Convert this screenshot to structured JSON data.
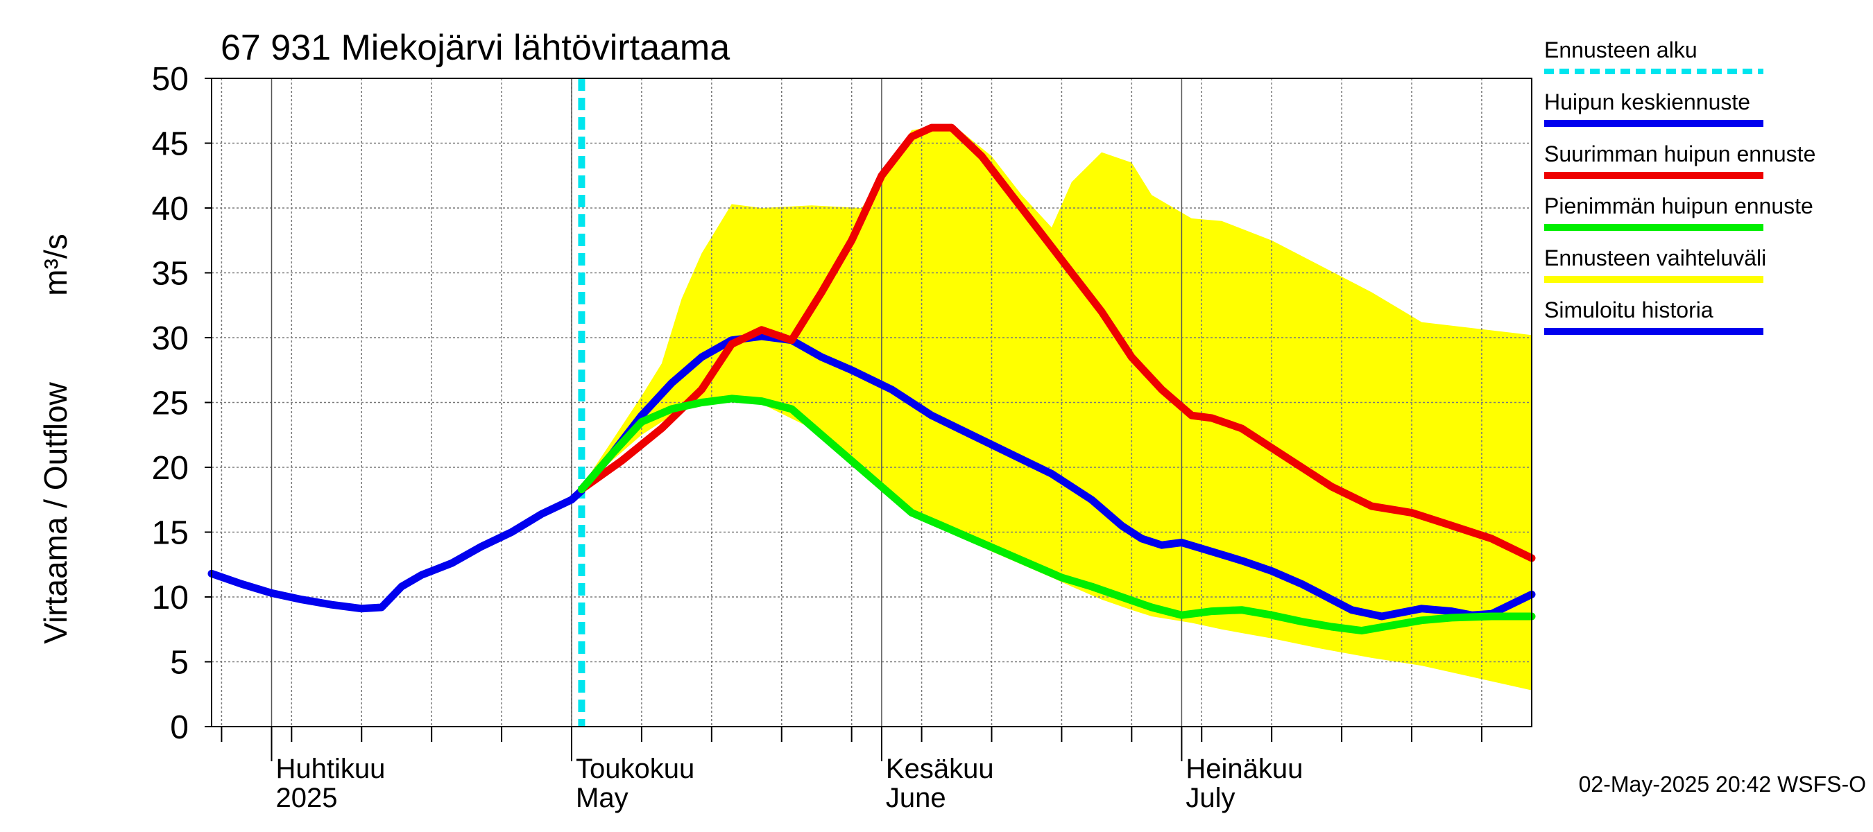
{
  "chart_data": {
    "type": "line",
    "title": "67 931 Miekojärvi lähtövirtaama",
    "ylabel_left": "Virtaama / Outflow",
    "ylabel_right": "m³/s",
    "ylim": [
      0,
      50
    ],
    "yticks": [
      "0",
      "5",
      "10",
      "15",
      "20",
      "25",
      "30",
      "35",
      "40",
      "45",
      "50"
    ],
    "xlim": [
      "2025-03-26",
      "2025-08-05"
    ],
    "grid": true,
    "month_labels": [
      {
        "date": "2025-04-01",
        "fi": "Huhtikuu",
        "en": "2025"
      },
      {
        "date": "2025-05-01",
        "fi": "Toukokuu",
        "en": "May"
      },
      {
        "date": "2025-06-01",
        "fi": "Kesäkuu",
        "en": "June"
      },
      {
        "date": "2025-07-01",
        "fi": "Heinäkuu",
        "en": "July"
      }
    ],
    "forecast_start": "2025-05-02",
    "legend": [
      {
        "label": "Ennusteen alku",
        "color": "#00e5ee",
        "style": "dashed"
      },
      {
        "label": "Huipun keskiennuste",
        "color": "#0000ee",
        "style": "solid"
      },
      {
        "label": "Suurimman huipun ennuste",
        "color": "#ee0000",
        "style": "solid"
      },
      {
        "label": "Pienimmän huipun ennuste",
        "color": "#00ee00",
        "style": "solid"
      },
      {
        "label": "Ennusteen vaihteluväli",
        "color": "#ffff00",
        "style": "solid"
      },
      {
        "label": "Simuloitu historia",
        "color": "#0000ee",
        "style": "solid"
      }
    ],
    "legend_position": "right",
    "footer": "02-May-2025 20:42 WSFS-O",
    "band": {
      "name": "Ennusteen vaihteluväli",
      "x": [
        "2025-05-02",
        "2025-05-05",
        "2025-05-08",
        "2025-05-10",
        "2025-05-12",
        "2025-05-14",
        "2025-05-17",
        "2025-05-20",
        "2025-05-25",
        "2025-05-30",
        "2025-06-04",
        "2025-06-08",
        "2025-06-12",
        "2025-06-15",
        "2025-06-18",
        "2025-06-20",
        "2025-06-23",
        "2025-06-26",
        "2025-06-28",
        "2025-07-02",
        "2025-07-05",
        "2025-07-10",
        "2025-07-15",
        "2025-07-20",
        "2025-07-25",
        "2025-08-05"
      ],
      "upper": [
        18.5,
        22,
        25.5,
        28,
        33,
        36.5,
        40.3,
        40,
        40.2,
        40,
        46,
        46.5,
        44,
        41,
        38.5,
        42,
        44.3,
        43.5,
        41,
        39.2,
        39,
        37.5,
        35.5,
        33.5,
        31.2,
        30.2
      ],
      "lower": [
        18.5,
        20.5,
        22.5,
        23.5,
        24.3,
        25.2,
        25.4,
        24.9,
        23,
        19.5,
        16.5,
        15,
        13.5,
        12.5,
        11.5,
        10.8,
        9.8,
        9,
        8.5,
        8,
        7.5,
        6.8,
        6,
        5.3,
        4.7,
        2.8
      ]
    },
    "series": [
      {
        "name": "Simuloitu historia",
        "color": "#0000ee",
        "x": [
          "2025-03-26",
          "2025-03-29",
          "2025-04-01",
          "2025-04-04",
          "2025-04-07",
          "2025-04-10",
          "2025-04-12",
          "2025-04-14",
          "2025-04-16",
          "2025-04-19",
          "2025-04-22",
          "2025-04-25",
          "2025-04-28",
          "2025-05-01",
          "2025-05-02"
        ],
        "y": [
          11.8,
          11,
          10.3,
          9.8,
          9.4,
          9.1,
          9.2,
          10.8,
          11.7,
          12.6,
          13.9,
          15,
          16.4,
          17.5,
          18.2
        ]
      },
      {
        "name": "Huipun keskiennuste",
        "color": "#0000ee",
        "x": [
          "2025-05-02",
          "2025-05-05",
          "2025-05-08",
          "2025-05-11",
          "2025-05-14",
          "2025-05-17",
          "2025-05-20",
          "2025-05-23",
          "2025-05-26",
          "2025-05-29",
          "2025-06-02",
          "2025-06-06",
          "2025-06-10",
          "2025-06-14",
          "2025-06-18",
          "2025-06-22",
          "2025-06-25",
          "2025-06-27",
          "2025-06-29",
          "2025-07-01",
          "2025-07-04",
          "2025-07-07",
          "2025-07-10",
          "2025-07-13",
          "2025-07-16",
          "2025-07-18",
          "2025-07-21",
          "2025-07-25",
          "2025-07-28",
          "2025-07-30",
          "2025-08-01",
          "2025-08-05"
        ],
        "y": [
          18.3,
          21,
          24,
          26.5,
          28.5,
          29.8,
          30.1,
          29.8,
          28.5,
          27.5,
          26,
          24,
          22.5,
          21,
          19.5,
          17.5,
          15.5,
          14.5,
          14,
          14.2,
          13.5,
          12.8,
          12,
          11,
          9.8,
          9,
          8.5,
          9.1,
          8.9,
          8.6,
          8.7,
          10.2
        ]
      },
      {
        "name": "Suurimman huipun ennuste",
        "color": "#ee0000",
        "x": [
          "2025-05-02",
          "2025-05-06",
          "2025-05-10",
          "2025-05-14",
          "2025-05-17",
          "2025-05-20",
          "2025-05-23",
          "2025-05-26",
          "2025-05-29",
          "2025-06-01",
          "2025-06-04",
          "2025-06-06",
          "2025-06-08",
          "2025-06-11",
          "2025-06-14",
          "2025-06-17",
          "2025-06-20",
          "2025-06-23",
          "2025-06-26",
          "2025-06-29",
          "2025-07-02",
          "2025-07-04",
          "2025-07-07",
          "2025-07-10",
          "2025-07-13",
          "2025-07-16",
          "2025-07-20",
          "2025-07-24",
          "2025-07-28",
          "2025-08-01",
          "2025-08-05"
        ],
        "y": [
          18.3,
          20.5,
          23,
          26,
          29.5,
          30.6,
          29.8,
          33.5,
          37.5,
          42.5,
          45.5,
          46.2,
          46.2,
          44,
          41,
          38,
          35,
          32,
          28.5,
          26,
          24,
          23.8,
          23,
          21.5,
          20,
          18.5,
          17,
          16.5,
          15.5,
          14.5,
          13
        ]
      },
      {
        "name": "Pienimmän huipun ennuste",
        "color": "#00ee00",
        "x": [
          "2025-05-02",
          "2025-05-05",
          "2025-05-08",
          "2025-05-11",
          "2025-05-14",
          "2025-05-17",
          "2025-05-20",
          "2025-05-23",
          "2025-05-26",
          "2025-05-29",
          "2025-06-01",
          "2025-06-04",
          "2025-06-07",
          "2025-06-10",
          "2025-06-13",
          "2025-06-16",
          "2025-06-19",
          "2025-06-22",
          "2025-06-25",
          "2025-06-28",
          "2025-07-01",
          "2025-07-04",
          "2025-07-07",
          "2025-07-10",
          "2025-07-13",
          "2025-07-16",
          "2025-07-19",
          "2025-07-22",
          "2025-07-25",
          "2025-07-28",
          "2025-08-01",
          "2025-08-05"
        ],
        "y": [
          18.3,
          21,
          23.5,
          24.5,
          25,
          25.3,
          25.1,
          24.5,
          22.5,
          20.5,
          18.5,
          16.5,
          15.5,
          14.5,
          13.5,
          12.5,
          11.5,
          10.8,
          10,
          9.2,
          8.6,
          8.9,
          9,
          8.6,
          8.1,
          7.7,
          7.4,
          7.8,
          8.2,
          8.4,
          8.5,
          8.5
        ]
      }
    ]
  }
}
